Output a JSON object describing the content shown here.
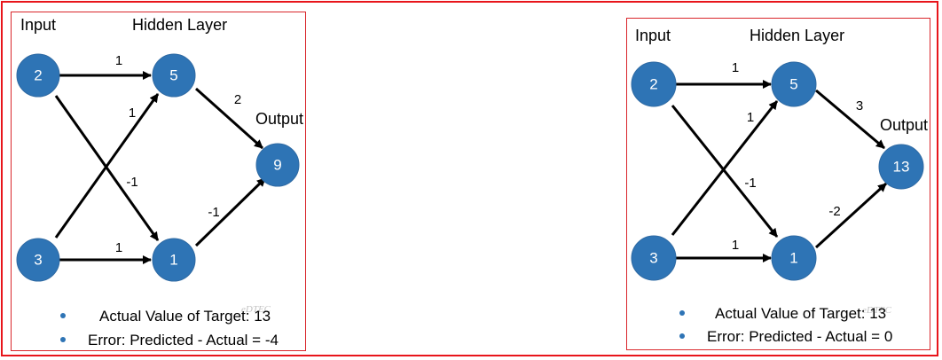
{
  "diagrams": [
    {
      "headers": {
        "input": "Input",
        "hidden": "Hidden Layer",
        "output": "Output"
      },
      "nodes": {
        "in1": "2",
        "in2": "3",
        "h1": "5",
        "h2": "1",
        "out": "9"
      },
      "weights": {
        "in1_h1": "1",
        "in1_h2": "-1",
        "in2_h1": "1",
        "in2_h2": "1",
        "h1_out": "2",
        "h2_out": "-1"
      },
      "bullets": [
        "Actual Value of Target: 13",
        "Error: Predicted - Actual = -4"
      ],
      "watermark": "eDTEC"
    },
    {
      "headers": {
        "input": "Input",
        "hidden": "Hidden Layer",
        "output": "Output"
      },
      "nodes": {
        "in1": "2",
        "in2": "3",
        "h1": "5",
        "h2": "1",
        "out": "13"
      },
      "weights": {
        "in1_h1": "1",
        "in1_h2": "-1",
        "in2_h1": "1",
        "in2_h2": "1",
        "h1_out": "3",
        "h2_out": "-2"
      },
      "bullets": [
        "Actual Value of Target: 13",
        "Error: Predicted - Actual = 0"
      ],
      "watermark": "eDTEC"
    }
  ],
  "colors": {
    "node": "#2e74b5",
    "frame": "#e8151b",
    "edge": "#000000"
  }
}
